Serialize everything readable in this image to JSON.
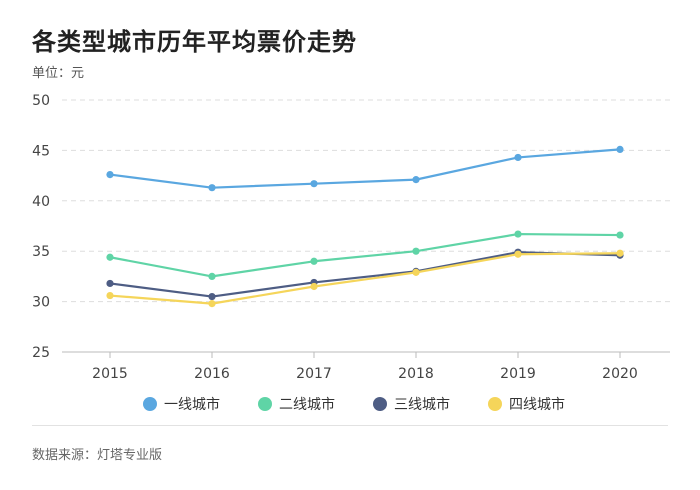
{
  "title": "各类型城市历年平均票价走势",
  "unit_label": "单位：元",
  "source": "数据来源：灯塔专业版",
  "chart_data": {
    "type": "line",
    "title": "各类型城市历年平均票价走势",
    "ylabel": "单位：元",
    "xlabel": "",
    "x": [
      "2015",
      "2016",
      "2017",
      "2018",
      "2019",
      "2020"
    ],
    "yticks": [
      25,
      30,
      35,
      40,
      45,
      50
    ],
    "ylim": [
      25,
      50
    ],
    "grid": true,
    "legend_position": "bottom",
    "series": [
      {
        "name": "一线城市",
        "color": "#5aa7e0",
        "values": [
          42.6,
          41.3,
          41.7,
          42.1,
          44.3,
          45.1
        ]
      },
      {
        "name": "二线城市",
        "color": "#5fd4a6",
        "values": [
          34.4,
          32.5,
          34.0,
          35.0,
          36.7,
          36.6
        ]
      },
      {
        "name": "三线城市",
        "color": "#4e5d84",
        "values": [
          31.8,
          30.5,
          31.9,
          33.0,
          34.9,
          34.6
        ]
      },
      {
        "name": "四线城市",
        "color": "#f5d55a",
        "values": [
          30.6,
          29.8,
          31.5,
          32.9,
          34.7,
          34.8
        ]
      }
    ]
  }
}
